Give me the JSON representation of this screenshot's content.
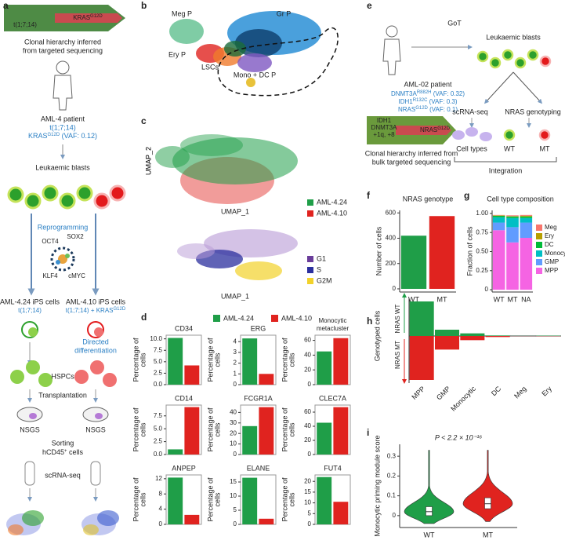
{
  "panels": {
    "letters": [
      "a",
      "b",
      "c",
      "d",
      "e",
      "f",
      "g",
      "h",
      "i"
    ],
    "a": {
      "clone_trunk": "t(1;7;14)",
      "clone_subclone": {
        "text": "KRAS",
        "sup": "G12D"
      },
      "caption": [
        "Clonal hierarchy inferred",
        "from targeted sequencing"
      ],
      "patient": "AML-4 patient",
      "patient_karyotype": "t(1;7;14)",
      "patient_mutation": {
        "text": "KRAS",
        "sup": "G12D",
        "after": " (VAF: 0.12)"
      },
      "blasts": "Leukaemic blasts",
      "reprogramming": "Reprogramming",
      "factors": [
        "OCT4",
        "SOX2",
        "KLF4",
        "cMYC"
      ],
      "ips_left": "AML-4.24 iPS cells",
      "ips_left_genotype": "t(1;7;14)",
      "ips_right": "AML-4.10 iPS cells",
      "ips_right_genotype": {
        "text": "t(1;7;14) + KRAS",
        "sup": "G12D"
      },
      "differentiation": [
        "Directed",
        "differentiation"
      ],
      "hspcs": "HSPCs",
      "transplantation": "Transplantation",
      "mouse_left": "NSGS",
      "mouse_right": "NSGS",
      "sorting": "Sorting",
      "sorting_marker": {
        "text": "hCD45",
        "sup": "+",
        "after": " cells"
      },
      "sequencing": "scRNA-seq"
    },
    "b": {
      "clusters": [
        "Meg P",
        "Gr P",
        "Ery P",
        "LSCs",
        "Mono + DC P"
      ]
    },
    "c": {
      "x_label": "UMAP_1",
      "y_label": "UMAP_2",
      "legend_top": [
        {
          "name": "AML-4.24",
          "color": "#1f9e48"
        },
        {
          "name": "AML-4.10",
          "color": "#e0231f"
        }
      ],
      "legend_bottom": [
        {
          "name": "G1",
          "color": "#6a3d9a"
        },
        {
          "name": "S",
          "color": "#2b2f9e"
        },
        {
          "name": "G2M",
          "color": "#f2d22a"
        }
      ]
    },
    "e": {
      "method": "GoT",
      "patient": "AML-02 patient",
      "mutations": [
        {
          "text": "DNMT3A",
          "sup": "R882H",
          "after": " (VAF: 0.32)"
        },
        {
          "text": "IDH1",
          "sup": "R132C",
          "after": " (VAF: 0.3)"
        },
        {
          "text": "NRAS",
          "sup": "G12D",
          "after": " (VAF: 0.1)"
        }
      ],
      "clone_trunk": [
        "IDH1",
        "DNMT3A",
        "+1q, +8"
      ],
      "clone_subclone": {
        "text": "NRAS",
        "sup": "G12D"
      },
      "caption": [
        "Clonal hierarchy inferred from",
        "bulk targeted sequencing"
      ],
      "blasts": "Leukaemic blasts",
      "sequencing": "scRNA-seq",
      "genotyping": "NRAS genotyping",
      "cell_types": "Cell types",
      "wt": "WT",
      "mt": "MT",
      "integration": "Integration"
    }
  },
  "chart_data": [
    {
      "type": "bar",
      "title": [
        "CD34"
      ],
      "ylabel": [
        "Percentage of",
        "cells"
      ],
      "series": [
        {
          "name": "AML-4.24",
          "color": "#1f9e48",
          "values": [
            10.2
          ]
        },
        {
          "name": "AML-4.10",
          "color": "#e0231f",
          "values": [
            4.2
          ]
        }
      ],
      "ylim": [
        0,
        10.8
      ],
      "yticks": [
        {
          "value": 0,
          "label": "0.0"
        },
        2.5,
        {
          "value": 5,
          "label": "5.0"
        },
        7.5,
        {
          "value": 10,
          "label": "10.0"
        }
      ]
    },
    {
      "type": "bar",
      "title": [
        "ERG"
      ],
      "ylabel": [
        "Percentage of",
        "cells"
      ],
      "series": [
        {
          "name": "AML-4.24",
          "color": "#1f9e48",
          "values": [
            4.3
          ]
        },
        {
          "name": "AML-4.10",
          "color": "#e0231f",
          "values": [
            1.0
          ]
        }
      ],
      "ylim": [
        0,
        4.6
      ],
      "yticks": [
        0,
        1,
        2,
        3,
        4
      ]
    },
    {
      "type": "bar",
      "title": [
        "Monocytic",
        "metacluster"
      ],
      "ylabel": [
        "Percentage of",
        "cells"
      ],
      "series": [
        {
          "name": "AML-4.24",
          "color": "#1f9e48",
          "values": [
            45
          ]
        },
        {
          "name": "AML-4.10",
          "color": "#e0231f",
          "values": [
            63
          ]
        }
      ],
      "ylim": [
        0,
        67
      ],
      "yticks": [
        0,
        20,
        40,
        60
      ]
    },
    {
      "type": "bar",
      "title": [
        "CD14"
      ],
      "ylabel": [
        "Percentage of",
        "cells"
      ],
      "series": [
        {
          "name": "AML-4.24",
          "color": "#1f9e48",
          "values": [
            1.0
          ]
        },
        {
          "name": "AML-4.10",
          "color": "#e0231f",
          "values": [
            9.2
          ]
        }
      ],
      "ylim": [
        0,
        9.6
      ],
      "yticks": [
        {
          "value": 0,
          "label": "0.0"
        },
        2.5,
        {
          "value": 5,
          "label": "5.0"
        },
        7.5
      ]
    },
    {
      "type": "bar",
      "title": [
        "FCGR1A"
      ],
      "ylabel": [
        "Percentage of",
        "cells"
      ],
      "series": [
        {
          "name": "AML-4.24",
          "color": "#1f9e48",
          "values": [
            27
          ]
        },
        {
          "name": "AML-4.10",
          "color": "#e0231f",
          "values": [
            45
          ]
        }
      ],
      "ylim": [
        0,
        47
      ],
      "yticks": [
        0,
        10,
        20,
        30,
        40
      ]
    },
    {
      "type": "bar",
      "title": [
        "CLEC7A"
      ],
      "ylabel": [
        "Percentage of",
        "cells"
      ],
      "series": [
        {
          "name": "AML-4.24",
          "color": "#1f9e48",
          "values": [
            45
          ]
        },
        {
          "name": "AML-4.10",
          "color": "#e0231f",
          "values": [
            67
          ]
        }
      ],
      "ylim": [
        0,
        70
      ],
      "yticks": [
        0,
        20,
        40,
        60
      ]
    },
    {
      "type": "bar",
      "title": [
        "ANPEP"
      ],
      "ylabel": [
        "Percentage of",
        "cells"
      ],
      "series": [
        {
          "name": "AML-4.24",
          "color": "#1f9e48",
          "values": [
            12.3
          ]
        },
        {
          "name": "AML-4.10",
          "color": "#e0231f",
          "values": [
            2.5
          ]
        }
      ],
      "ylim": [
        0,
        13
      ],
      "yticks": [
        0,
        4,
        8,
        12
      ]
    },
    {
      "type": "bar",
      "title": [
        "ELANE"
      ],
      "ylabel": [
        "Percentage of",
        "cells"
      ],
      "series": [
        {
          "name": "AML-4.24",
          "color": "#1f9e48",
          "values": [
            16.5
          ]
        },
        {
          "name": "AML-4.10",
          "color": "#e0231f",
          "values": [
            2.0
          ]
        }
      ],
      "ylim": [
        0,
        17.5
      ],
      "yticks": [
        0,
        5,
        10,
        15
      ]
    },
    {
      "type": "bar",
      "title": [
        "FUT4"
      ],
      "ylabel": [
        "Percentage of",
        "cells"
      ],
      "series": [
        {
          "name": "AML-4.24",
          "color": "#1f9e48",
          "values": [
            22
          ]
        },
        {
          "name": "AML-4.10",
          "color": "#e0231f",
          "values": [
            10.5
          ]
        }
      ],
      "ylim": [
        0,
        23
      ],
      "yticks": [
        0,
        5,
        10,
        15,
        20
      ]
    },
    {
      "type": "bar",
      "title": [
        "NRAS genotype"
      ],
      "ylabel": [
        "Number of cells"
      ],
      "categories": [
        "WT",
        "MT"
      ],
      "values": [
        420,
        575
      ],
      "colors": [
        "#1f9e48",
        "#e0231f"
      ],
      "ylim": [
        -25,
        620
      ],
      "yticks": [
        0,
        200,
        400,
        600
      ]
    },
    {
      "type": "stacked_bar",
      "title": [
        "Cell type composition"
      ],
      "ylabel": [
        "Fraction of cells"
      ],
      "categories": [
        "WT",
        "MT",
        "NA"
      ],
      "series": [
        {
          "name": "Meg",
          "color": "#f8766d",
          "values": [
            0.005,
            0.01,
            0.01
          ]
        },
        {
          "name": "Ery",
          "color": "#b79f00",
          "values": [
            0.005,
            0.005,
            0.01
          ]
        },
        {
          "name": "DC",
          "color": "#00ba38",
          "values": [
            0.02,
            0.02,
            0.02
          ]
        },
        {
          "name": "Monocytic",
          "color": "#00bfc4",
          "values": [
            0.07,
            0.12,
            0.06
          ]
        },
        {
          "name": "GMP",
          "color": "#619cff",
          "values": [
            0.1,
            0.2,
            0.2
          ]
        },
        {
          "name": "MPP",
          "color": "#f564e3",
          "values": [
            0.78,
            0.62,
            0.68
          ]
        }
      ],
      "ylim": [
        -0.03,
        1.04
      ],
      "yticks": [
        0,
        0.25,
        {
          "value": 0.5,
          "label": "0.50"
        },
        0.75,
        {
          "value": 1,
          "label": "1.00"
        }
      ]
    },
    {
      "type": "diverging_bar",
      "ylabel": [
        "Genotyped cells"
      ],
      "categories": [
        "MPP",
        "GMP",
        "Monocytic",
        "DC",
        "Meg",
        "Ery"
      ],
      "series": [
        {
          "name": "NRAS WT",
          "color": "#1f9e48",
          "values": [
            330,
            60,
            25,
            5,
            1,
            3
          ]
        },
        {
          "name": "NRAS MT",
          "color": "#e0231f",
          "values": [
            -420,
            -130,
            -40,
            -10,
            -1,
            -2
          ]
        }
      ],
      "ylim": [
        -450,
        360
      ]
    },
    {
      "type": "violin",
      "ylabel": [
        "Monocytic priming module score"
      ],
      "annotation": "P < 2.2 × 10⁻¹⁶",
      "categories": [
        "WT",
        "MT"
      ],
      "colors": [
        "#1f9e48",
        "#e0231f"
      ],
      "min": [
        -0.04,
        -0.03
      ],
      "q1": [
        0.0,
        0.035
      ],
      "median": [
        0.02,
        0.06
      ],
      "q3": [
        0.045,
        0.09
      ],
      "max": [
        0.33,
        0.33
      ],
      "ylim": [
        -0.06,
        0.36
      ],
      "yticks": [
        0,
        0.1,
        0.2,
        0.3
      ]
    }
  ]
}
